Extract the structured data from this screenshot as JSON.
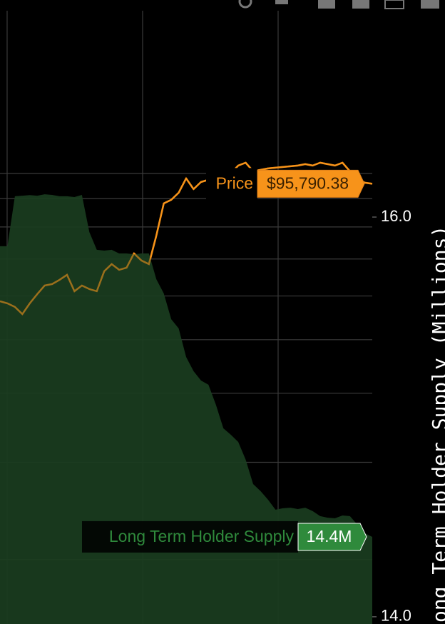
{
  "chart_data": {
    "type": "area-line",
    "y_label": "ong Term Holder Supply (Millions)",
    "ylim": [
      13.964,
      17.086
    ],
    "yticks": [
      {
        "value": 16,
        "label": "16.0"
      },
      {
        "value": 14,
        "label": "14.0"
      }
    ],
    "y2lim": [
      15290,
      206000
    ],
    "y2_log": true,
    "y2ticks": [
      100000,
      90000,
      80000,
      70000,
      60000,
      50000,
      40000,
      30000,
      20000
    ],
    "grid": true,
    "series": [
      {
        "name": "Long Term Holder Supply",
        "type": "area",
        "color": "#1a3d20",
        "label_color": "#2f8a3c",
        "values": [
          15.854,
          15.854,
          16.104,
          16.107,
          16.11,
          16.107,
          16.114,
          16.111,
          16.104,
          16.104,
          16.1,
          16.111,
          15.925,
          15.836,
          15.832,
          15.836,
          15.818,
          15.818,
          15.814,
          15.818,
          15.818,
          15.689,
          15.618,
          15.489,
          15.443,
          15.3,
          15.229,
          15.182,
          15.161,
          15.061,
          14.943,
          14.911,
          14.875,
          14.786,
          14.664,
          14.629,
          14.586,
          14.536,
          14.543,
          14.546,
          14.539,
          14.546,
          14.529,
          14.504,
          14.496,
          14.493,
          14.507,
          14.504,
          14.461,
          14.418,
          14.4
        ],
        "value_labels": [
          null,
          null,
          null,
          null,
          null,
          null,
          null,
          null,
          null,
          null,
          null,
          null,
          null,
          null,
          null,
          null,
          null,
          null,
          null,
          null,
          null,
          null,
          null,
          null,
          null,
          null,
          null,
          null,
          null,
          null,
          null,
          null,
          null,
          null,
          null,
          null,
          null,
          null,
          null,
          null,
          null,
          null,
          null,
          null,
          null,
          null,
          null,
          null,
          null,
          null,
          "14.4M"
        ]
      },
      {
        "name": "Price",
        "type": "line",
        "axis": "y2",
        "color": "#f7931a",
        "values": [
          58700,
          58180,
          57320,
          55640,
          58180,
          60470,
          62670,
          63050,
          64180,
          65530,
          61200,
          62670,
          61750,
          61200,
          66520,
          68520,
          66910,
          67510,
          71650,
          69550,
          68520,
          77190,
          88250,
          89570,
          92280,
          97940,
          93660,
          96490,
          97360,
          98520,
          99410,
          100000,
          103330,
          104560,
          100900,
          101500,
          102100,
          102410,
          102720,
          103020,
          103330,
          103950,
          103330,
          104560,
          103950,
          103330,
          104560,
          100900,
          97940,
          96200,
          95790.38
        ],
        "value_labels": [
          null,
          null,
          null,
          null,
          null,
          null,
          null,
          null,
          null,
          null,
          null,
          null,
          null,
          null,
          null,
          null,
          null,
          null,
          null,
          null,
          null,
          null,
          null,
          null,
          null,
          null,
          null,
          null,
          null,
          null,
          null,
          null,
          null,
          null,
          null,
          null,
          null,
          null,
          null,
          null,
          null,
          null,
          null,
          null,
          null,
          null,
          null,
          null,
          null,
          null,
          "$95,790.38"
        ]
      }
    ]
  }
}
